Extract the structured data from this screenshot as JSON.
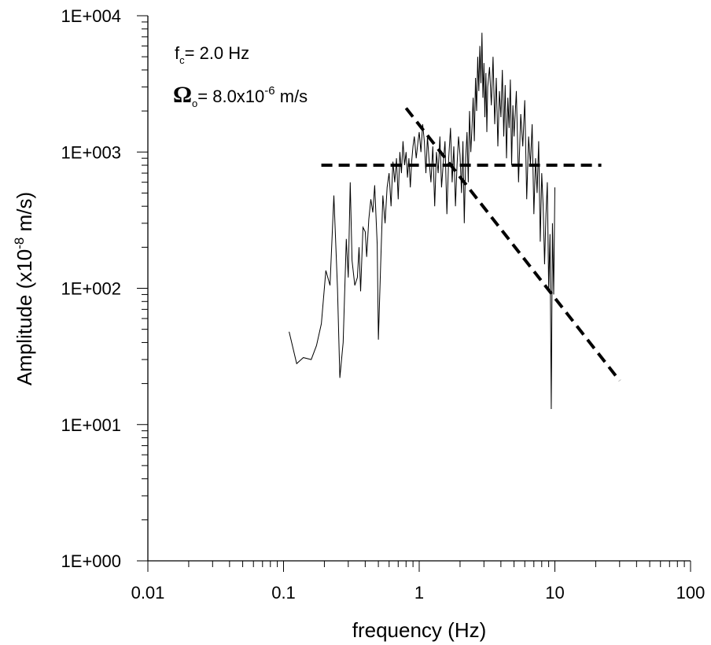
{
  "chart_data": {
    "type": "line",
    "xlabel": "frequency (Hz)",
    "ylabel_parts": [
      "Amplitude (x10",
      "-8",
      " m/s)"
    ],
    "x_scale": "log",
    "y_scale": "log",
    "xlim": [
      0.01,
      100
    ],
    "ylim": [
      1,
      10000
    ],
    "x_tick_labels": [
      "0.01",
      "0.1",
      "1",
      "10",
      "100"
    ],
    "y_tick_labels": [
      "1E+000",
      "1E+001",
      "1E+002",
      "1E+003",
      "1E+004"
    ],
    "grid": false,
    "annotations": {
      "fc": {
        "symbol": "f",
        "sub": "c",
        "text": "=  2.0 Hz"
      },
      "omega": {
        "symbol": "Ω",
        "sub": "o",
        "text": "= 8.0x10",
        "sup": "-6",
        "unit": " m/s"
      }
    },
    "fit_lines": [
      {
        "style": "dashed",
        "x": [
          0.19,
          22
        ],
        "y": [
          800,
          800
        ]
      },
      {
        "style": "dashed",
        "x": [
          0.8,
          30
        ],
        "y": [
          2100,
          21
        ]
      }
    ],
    "series": [
      {
        "style": "solid",
        "x": [
          0.11,
          0.125,
          0.14,
          0.16,
          0.175,
          0.19,
          0.205,
          0.22,
          0.235,
          0.25,
          0.26,
          0.275,
          0.29,
          0.3,
          0.31,
          0.32,
          0.335,
          0.35,
          0.36,
          0.37,
          0.385,
          0.4,
          0.41,
          0.425,
          0.44,
          0.455,
          0.47,
          0.49,
          0.5,
          0.52,
          0.54,
          0.56,
          0.58,
          0.6,
          0.62,
          0.64,
          0.66,
          0.68,
          0.7,
          0.72,
          0.74,
          0.76,
          0.78,
          0.8,
          0.82,
          0.84,
          0.86,
          0.88,
          0.9,
          0.92,
          0.95,
          0.98,
          1.0,
          1.03,
          1.06,
          1.09,
          1.12,
          1.15,
          1.18,
          1.22,
          1.26,
          1.3,
          1.34,
          1.38,
          1.42,
          1.46,
          1.5,
          1.55,
          1.6,
          1.65,
          1.7,
          1.75,
          1.8,
          1.85,
          1.9,
          1.95,
          2.0,
          2.05,
          2.1,
          2.15,
          2.2,
          2.25,
          2.3,
          2.35,
          2.4,
          2.45,
          2.5,
          2.55,
          2.6,
          2.65,
          2.7,
          2.75,
          2.8,
          2.85,
          2.9,
          2.95,
          3.0,
          3.05,
          3.1,
          3.15,
          3.2,
          3.3,
          3.4,
          3.5,
          3.6,
          3.7,
          3.8,
          3.9,
          4.0,
          4.1,
          4.2,
          4.3,
          4.4,
          4.5,
          4.6,
          4.7,
          4.8,
          4.9,
          5.0,
          5.2,
          5.4,
          5.6,
          5.8,
          6.0,
          6.2,
          6.4,
          6.6,
          6.8,
          7.0,
          7.2,
          7.4,
          7.6,
          7.8,
          8.0,
          8.2,
          8.4,
          8.6,
          8.8,
          9.0,
          9.2,
          9.4,
          9.6,
          9.8,
          10.0
        ],
        "y": [
          48,
          28,
          31,
          30,
          38,
          55,
          135,
          105,
          480,
          100,
          22,
          40,
          230,
          120,
          600,
          160,
          105,
          120,
          200,
          95,
          280,
          260,
          170,
          320,
          450,
          360,
          570,
          210,
          42,
          150,
          480,
          300,
          550,
          700,
          400,
          850,
          600,
          900,
          450,
          1000,
          700,
          1200,
          800,
          1000,
          650,
          900,
          550,
          850,
          1100,
          1300,
          900,
          1200,
          1400,
          1000,
          1600,
          1200,
          700,
          1300,
          900,
          600,
          1100,
          400,
          1000,
          700,
          1300,
          550,
          800,
          1200,
          350,
          900,
          1500,
          600,
          1100,
          400,
          800,
          1300,
          950,
          500,
          1200,
          300,
          900,
          1400,
          600,
          2000,
          1000,
          1500,
          2500,
          1200,
          3500,
          2000,
          5000,
          2800,
          6000,
          3200,
          7500,
          2500,
          4500,
          1800,
          3800,
          1400,
          3000,
          4200,
          2200,
          5000,
          1600,
          3500,
          1100,
          2800,
          1800,
          4000,
          1300,
          3100,
          900,
          2500,
          1500,
          3400,
          800,
          2200,
          1300,
          2800,
          600,
          1900,
          1100,
          2400,
          450,
          1300,
          800,
          1600,
          350,
          900,
          500,
          1200,
          220,
          700,
          400,
          150,
          350,
          600,
          100,
          250,
          13,
          300,
          90,
          550
        ]
      }
    ]
  }
}
